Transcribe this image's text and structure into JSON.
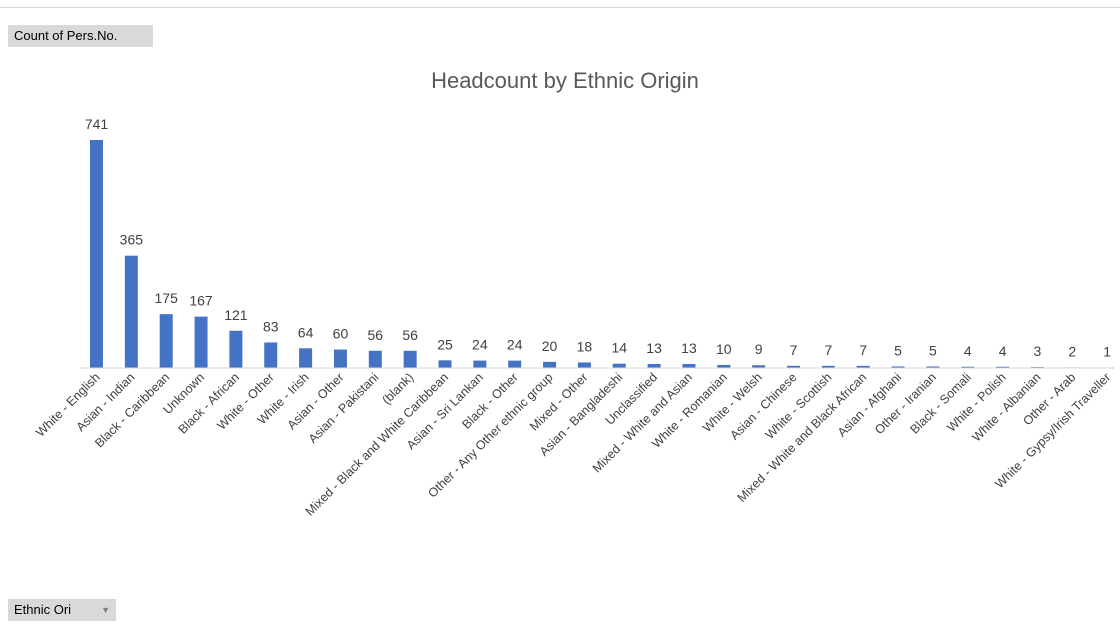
{
  "pivot": {
    "values_field": "Count of Pers.No.",
    "axis_field": "Ethnic Ori"
  },
  "colors": {
    "bar": "#4472c4",
    "text": "#404040",
    "title": "#595959",
    "axis": "#d9d9d9"
  },
  "chart_data": {
    "type": "bar",
    "title": "Headcount by Ethnic Origin",
    "xlabel": "",
    "ylabel": "",
    "grid": false,
    "legend": "none",
    "categories": [
      "White - English",
      "Asian - Indian",
      "Black - Caribbean",
      "Unknown",
      "Black - African",
      "White - Other",
      "White - Irish",
      "Asian - Other",
      "Asian - Pakistani",
      "(blank)",
      "Mixed - Black and White Caribbean",
      "Asian - Sri Lankan",
      "Black - Other",
      "Other - Any Other ethnic group",
      "Mixed - Other",
      "Asian - Bangladeshi",
      "Unclassified",
      "Mixed - White and Asian",
      "White - Romanian",
      "White - Welsh",
      "Asian - Chinese",
      "White - Scottish",
      "Mixed - White and Black African",
      "Asian - Afghani",
      "Other - Iranian",
      "Black - Somali",
      "White - Polish",
      "White - Albanian",
      "Other - Arab",
      "White - Gypsy/Irish Traveller"
    ],
    "values": [
      741,
      365,
      175,
      167,
      121,
      83,
      64,
      60,
      56,
      56,
      25,
      24,
      24,
      20,
      18,
      14,
      13,
      13,
      10,
      9,
      7,
      7,
      7,
      5,
      5,
      4,
      4,
      3,
      2,
      1
    ]
  }
}
